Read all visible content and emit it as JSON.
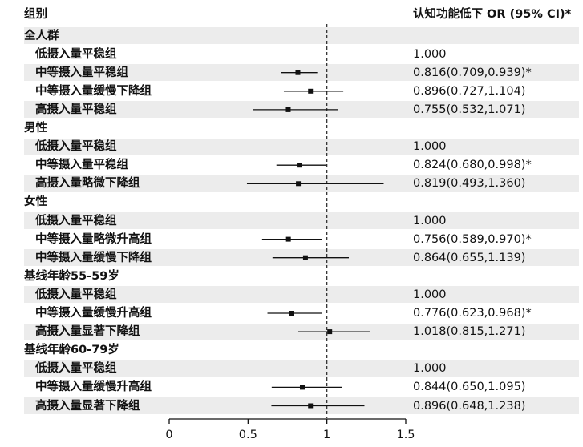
{
  "header": {
    "group_label": "组别",
    "value_label": "认知功能低下 OR (95% CI)*"
  },
  "chart_data": {
    "type": "forest",
    "title": "",
    "xlabel": "",
    "ylabel": "",
    "xlim": [
      0,
      1.5
    ],
    "xticks": [
      0,
      0.5,
      1,
      1.5
    ],
    "xtick_labels": [
      "0",
      "0.5",
      "1",
      "1.5"
    ],
    "reference_line": 1,
    "rows": [
      {
        "label": "全人群",
        "kind": "group"
      },
      {
        "label": "低摄入量平稳组",
        "kind": "item",
        "or_text": "1.000"
      },
      {
        "label": "中等摄入量平稳组",
        "kind": "item",
        "or": 0.816,
        "lo": 0.709,
        "hi": 0.939,
        "or_text": "0.816(0.709,0.939)*"
      },
      {
        "label": "中等摄入量缓慢下降组",
        "kind": "item",
        "or": 0.896,
        "lo": 0.727,
        "hi": 1.104,
        "or_text": "0.896(0.727,1.104)"
      },
      {
        "label": "高摄入量平稳组",
        "kind": "item",
        "or": 0.755,
        "lo": 0.532,
        "hi": 1.071,
        "or_text": "0.755(0.532,1.071)"
      },
      {
        "label": "男性",
        "kind": "group"
      },
      {
        "label": "低摄入量平稳组",
        "kind": "item",
        "or_text": "1.000"
      },
      {
        "label": "中等摄入量平稳组",
        "kind": "item",
        "or": 0.824,
        "lo": 0.68,
        "hi": 0.998,
        "or_text": "0.824(0.680,0.998)*"
      },
      {
        "label": "高摄入量略微下降组",
        "kind": "item",
        "or": 0.819,
        "lo": 0.493,
        "hi": 1.36,
        "or_text": "0.819(0.493,1.360)"
      },
      {
        "label": "女性",
        "kind": "group"
      },
      {
        "label": "低摄入量平稳组",
        "kind": "item",
        "or_text": "1.000"
      },
      {
        "label": "中等摄入量略微升高组",
        "kind": "item",
        "or": 0.756,
        "lo": 0.589,
        "hi": 0.97,
        "or_text": "0.756(0.589,0.970)*"
      },
      {
        "label": "中等摄入量缓慢下降组",
        "kind": "item",
        "or": 0.864,
        "lo": 0.655,
        "hi": 1.139,
        "or_text": "0.864(0.655,1.139)"
      },
      {
        "label": "基线年龄55-59岁",
        "kind": "group"
      },
      {
        "label": "低摄入量平稳组",
        "kind": "item",
        "or_text": "1.000"
      },
      {
        "label": "中等摄入量缓慢升高组",
        "kind": "item",
        "or": 0.776,
        "lo": 0.623,
        "hi": 0.968,
        "or_text": "0.776(0.623,0.968)*"
      },
      {
        "label": "高摄入量显著下降组",
        "kind": "item",
        "or": 1.018,
        "lo": 0.815,
        "hi": 1.271,
        "or_text": "1.018(0.815,1.271)"
      },
      {
        "label": "基线年龄60-79岁",
        "kind": "group"
      },
      {
        "label": "低摄入量平稳组",
        "kind": "item",
        "or_text": "1.000"
      },
      {
        "label": "中等摄入量缓慢升高组",
        "kind": "item",
        "or": 0.844,
        "lo": 0.65,
        "hi": 1.095,
        "or_text": "0.844(0.650,1.095)"
      },
      {
        "label": "高摄入量显著下降组",
        "kind": "item",
        "or": 0.896,
        "lo": 0.648,
        "hi": 1.238,
        "or_text": "0.896(0.648,1.238)"
      }
    ]
  }
}
